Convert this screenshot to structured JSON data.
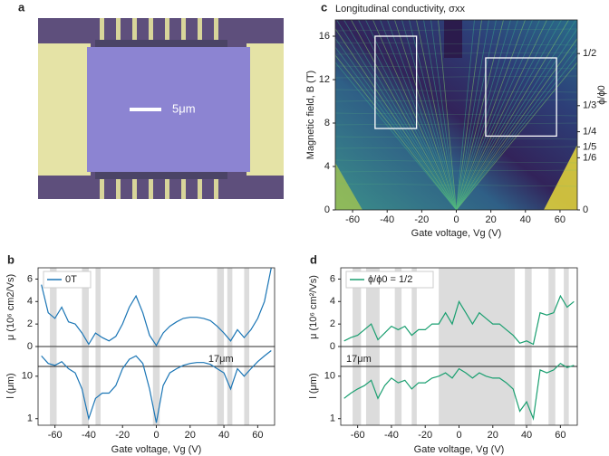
{
  "micrograph": {
    "label": "a",
    "scale_bar": "5μm"
  },
  "chart_data": [
    {
      "type": "heatmap",
      "label": "c",
      "title": "Longitudinal conductivity, σxx",
      "x_label": "Gate voltage, Vg (V)",
      "y_label": "Magnetic field, B (T)",
      "y2_label": "ϕ/ϕ0",
      "xlim": [
        -70,
        70
      ],
      "xticks": [
        -60,
        -40,
        -20,
        0,
        20,
        40,
        60
      ],
      "ylim": [
        0,
        17.5
      ],
      "yticks": [
        0,
        4,
        8,
        12,
        16
      ],
      "y2lim": [
        0,
        17.5
      ],
      "y2ticks": [
        {
          "value": 14.4,
          "label": "1/2"
        },
        {
          "value": 9.6,
          "label": "1/3"
        },
        {
          "value": 7.2,
          "label": "1/4"
        },
        {
          "value": 5.8,
          "label": "1/5"
        },
        {
          "value": 4.8,
          "label": "1/6"
        },
        0
      ],
      "boxes": [
        {
          "x": [
            -47,
            -23
          ],
          "y": [
            7.5,
            16
          ]
        },
        {
          "x": [
            17,
            58
          ],
          "y": [
            6.8,
            14
          ]
        }
      ]
    },
    {
      "type": "line",
      "label": "b",
      "x_label": "Gate voltage, Vg (V)",
      "xlim": [
        -70,
        70
      ],
      "xticks": [
        -60,
        -40,
        -20,
        0,
        20,
        40,
        60
      ],
      "x": [
        -68,
        -64,
        -60,
        -56,
        -52,
        -48,
        -44,
        -40,
        -36,
        -32,
        -28,
        -24,
        -20,
        -16,
        -12,
        -8,
        -4,
        0,
        4,
        8,
        12,
        16,
        20,
        24,
        28,
        32,
        36,
        40,
        44,
        48,
        52,
        56,
        60,
        64,
        68
      ],
      "bands": [
        [
          -63,
          -59
        ],
        [
          -44,
          -40
        ],
        [
          -36,
          -33
        ],
        [
          -2,
          2
        ],
        [
          36,
          40
        ],
        [
          42,
          45
        ],
        [
          52,
          55
        ]
      ],
      "panels": [
        {
          "y_label": "μ (10⁶ cm2/Vs)",
          "ylim": [
            0,
            7
          ],
          "yticks": [
            0,
            2,
            4,
            6
          ],
          "series": [
            {
              "name": "0T",
              "color": "#1a75b5",
              "values": [
                5.5,
                3,
                2.5,
                3.5,
                2.2,
                2,
                1.2,
                0.2,
                1.2,
                0.8,
                0.5,
                0.9,
                2,
                3.5,
                4.5,
                3,
                1,
                0.1,
                1.2,
                1.8,
                2.2,
                2.5,
                2.6,
                2.6,
                2.5,
                2.3,
                1.8,
                1.2,
                0.5,
                1.5,
                0.8,
                1.5,
                2.5,
                4,
                7
              ]
            }
          ]
        },
        {
          "y_label": "l (μm)",
          "log": true,
          "ylim": [
            0.7,
            50
          ],
          "yticks": [
            1,
            10
          ],
          "hline": {
            "value": 17,
            "label": "17μm"
          },
          "series": [
            {
              "color": "#1a75b5",
              "values": [
                30,
                20,
                18,
                22,
                15,
                12,
                5,
                1,
                3,
                4,
                4,
                6,
                15,
                25,
                30,
                20,
                5,
                0.8,
                6,
                12,
                15,
                18,
                20,
                21,
                21,
                19,
                15,
                12,
                5,
                15,
                10,
                15,
                22,
                30,
                40
              ]
            }
          ]
        }
      ]
    },
    {
      "type": "line",
      "label": "d",
      "x_label": "Gate voltage, Vg (V)",
      "xlim": [
        -70,
        70
      ],
      "xticks": [
        -60,
        -40,
        -20,
        0,
        20,
        40,
        60
      ],
      "x": [
        -68,
        -64,
        -60,
        -56,
        -52,
        -48,
        -44,
        -40,
        -36,
        -32,
        -28,
        -24,
        -20,
        -16,
        -12,
        -8,
        -4,
        0,
        4,
        8,
        12,
        16,
        20,
        24,
        28,
        32,
        36,
        40,
        44,
        48,
        52,
        56,
        60,
        64,
        68
      ],
      "bands": [
        [
          -63,
          -58
        ],
        [
          -55,
          -47
        ],
        [
          -38,
          -34
        ],
        [
          -28,
          -25
        ],
        [
          -12,
          33
        ],
        [
          39,
          43
        ],
        [
          53,
          57
        ],
        [
          62,
          65
        ]
      ],
      "panels": [
        {
          "y_label": "μ (10⁶ cm²/Vs)",
          "ylim": [
            0,
            7
          ],
          "yticks": [
            0,
            2,
            4,
            6
          ],
          "series": [
            {
              "name": "ϕ/ϕ0 = 1/2",
              "color": "#1a9f70",
              "values": [
                0.5,
                0.8,
                1,
                1.5,
                2,
                0.6,
                1.2,
                1.8,
                1.5,
                1.8,
                1,
                1.5,
                1.5,
                2,
                2,
                3,
                2,
                4,
                3,
                2,
                3,
                2.5,
                2,
                2,
                1.5,
                1,
                0.3,
                0.5,
                0.2,
                3,
                2.8,
                3,
                4.5,
                3.5,
                4
              ]
            }
          ]
        },
        {
          "y_label": "l (μm)",
          "log": true,
          "ylim": [
            0.7,
            50
          ],
          "yticks": [
            1,
            10
          ],
          "hline": {
            "value": 17,
            "label": "17μm"
          },
          "series": [
            {
              "color": "#1a9f70",
              "values": [
                3,
                4,
                5,
                6,
                8,
                3,
                6,
                9,
                7,
                8,
                5,
                7,
                7,
                9,
                10,
                12,
                9,
                15,
                12,
                9,
                12,
                10,
                9,
                9,
                7,
                5,
                1.5,
                2.5,
                1,
                14,
                12,
                14,
                20,
                16,
                18
              ]
            }
          ]
        }
      ]
    }
  ]
}
